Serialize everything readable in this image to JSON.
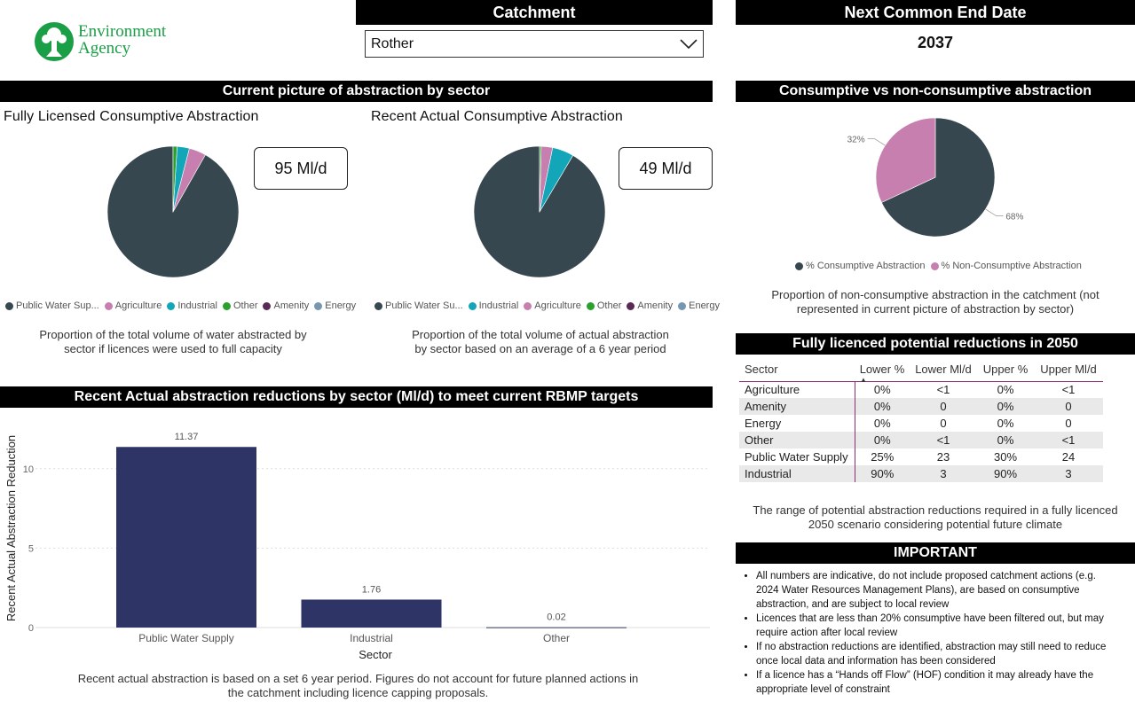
{
  "logo": {
    "line1": "Environment",
    "line2": "Agency"
  },
  "catchment": {
    "header": "Catchment",
    "selected": "Rother"
  },
  "end_date": {
    "header": "Next Common End Date",
    "value": "2037"
  },
  "current_picture": {
    "header": "Current picture of abstraction by sector",
    "licensed": {
      "title": "Fully Licensed Consumptive Abstraction",
      "kpi": "95 Ml/d",
      "legend": [
        {
          "label": "Public Water Sup...",
          "color": "#37474f"
        },
        {
          "label": "Agriculture",
          "color": "#c77fb0"
        },
        {
          "label": "Industrial",
          "color": "#12a6b8"
        },
        {
          "label": "Other",
          "color": "#2ca02c"
        },
        {
          "label": "Amenity",
          "color": "#5a2a56"
        },
        {
          "label": "Energy",
          "color": "#7796b0"
        }
      ],
      "caption_l1": "Proportion of the total volume of water abstracted by",
      "caption_l2": "sector if licences were used to full capacity"
    },
    "actual": {
      "title": "Recent Actual Consumptive Abstraction",
      "kpi": "49 Ml/d",
      "legend": [
        {
          "label": "Public Water Su...",
          "color": "#37474f"
        },
        {
          "label": "Industrial",
          "color": "#12a6b8"
        },
        {
          "label": "Agriculture",
          "color": "#c77fb0"
        },
        {
          "label": "Other",
          "color": "#2ca02c"
        },
        {
          "label": "Amenity",
          "color": "#5a2a56"
        },
        {
          "label": "Energy",
          "color": "#7796b0"
        }
      ],
      "caption_l1": "Proportion of the total volume of actual abstraction",
      "caption_l2": "by sector based on an average of a 6 year period"
    }
  },
  "consumptive": {
    "header": "Consumptive vs non-consumptive abstraction",
    "legend": [
      {
        "label": "% Consumptive Abstraction",
        "color": "#37474f"
      },
      {
        "label": "% Non-Consumptive Abstraction",
        "color": "#c77fb0"
      }
    ],
    "caption_l1": "Proportion of non-consumptive abstraction in the catchment (not",
    "caption_l2": "represented in current picture of abstraction by sector)"
  },
  "reductions_table": {
    "header": "Fully licenced potential reductions in 2050",
    "columns": [
      "Sector",
      "Lower %",
      "Lower Ml/d",
      "Upper %",
      "Upper Ml/d"
    ],
    "rows": [
      [
        "Agriculture",
        "0%",
        "<1",
        "0%",
        "<1"
      ],
      [
        "Amenity",
        "0%",
        "0",
        "0%",
        "0"
      ],
      [
        "Energy",
        "0%",
        "0",
        "0%",
        "0"
      ],
      [
        "Other",
        "0%",
        "<1",
        "0%",
        "<1"
      ],
      [
        "Public Water Supply",
        "25%",
        "23",
        "30%",
        "24"
      ],
      [
        "Industrial",
        "90%",
        "3",
        "90%",
        "3"
      ]
    ],
    "caption_l1": "The range of potential abstraction reductions required in a fully licenced",
    "caption_l2": "2050 scenario considering potential future climate"
  },
  "bar_section": {
    "header": "Recent Actual abstraction reductions by sector (Ml/d) to meet current RBMP targets",
    "caption_l1": "Recent actual abstraction is based on a set 6 year period. Figures do not account for future planned actions in",
    "caption_l2": "the catchment including licence capping proposals."
  },
  "important": {
    "header": "IMPORTANT",
    "items": [
      [
        "All numbers are indicative, do not include proposed catchment actions (e.g.",
        "2024 Water Resources Management Plans), are based on consumptive",
        "abstraction, and are subject to local review"
      ],
      [
        "Licences that are less than 20% consumptive have been filtered out, but may",
        "require action after local review"
      ],
      [
        "If no abstraction reductions are identified, abstraction may still need to reduce",
        "once local data and information has been considered"
      ],
      [
        "If a licence has a “Hands off Flow” (HOF) condition it may already have the",
        "appropriate level of constraint"
      ]
    ]
  },
  "chart_data": [
    {
      "type": "pie",
      "title": "Fully Licensed Consumptive Abstraction",
      "labels": [
        "Public Water Supply",
        "Agriculture",
        "Industrial",
        "Other",
        "Amenity",
        "Energy"
      ],
      "values": [
        91.8,
        4.2,
        3.0,
        1.0,
        0.0,
        0.0
      ],
      "colors": [
        "#37474f",
        "#c77fb0",
        "#12a6b8",
        "#2ca02c",
        "#5a2a56",
        "#7796b0"
      ]
    },
    {
      "type": "pie",
      "title": "Recent Actual Consumptive Abstraction",
      "labels": [
        "Public Water Supply",
        "Industrial",
        "Agriculture",
        "Other",
        "Amenity",
        "Energy"
      ],
      "values": [
        91.5,
        5.3,
        2.8,
        0.4,
        0.0,
        0.0
      ],
      "colors": [
        "#37474f",
        "#12a6b8",
        "#c77fb0",
        "#2ca02c",
        "#5a2a56",
        "#7796b0"
      ]
    },
    {
      "type": "pie",
      "title": "Consumptive vs non-consumptive abstraction",
      "labels": [
        "% Consumptive Abstraction",
        "% Non-Consumptive Abstraction"
      ],
      "values": [
        68,
        32
      ],
      "value_labels": [
        "68%",
        "32%"
      ],
      "colors": [
        "#37474f",
        "#c77fb0"
      ]
    },
    {
      "type": "bar",
      "title": "Recent Actual abstraction reductions by sector (Ml/d) to meet current RBMP targets",
      "categories": [
        "Public Water Supply",
        "Industrial",
        "Other"
      ],
      "values": [
        11.37,
        1.76,
        0.02
      ],
      "value_labels": [
        "11.37",
        "1.76",
        "0.02"
      ],
      "xlabel": "Sector",
      "ylabel": "Recent Actual Abstraction Reduction",
      "yticks": [
        "0",
        "5",
        "10"
      ],
      "ylim": [
        0,
        12.5
      ],
      "color": "#2e3566"
    }
  ]
}
